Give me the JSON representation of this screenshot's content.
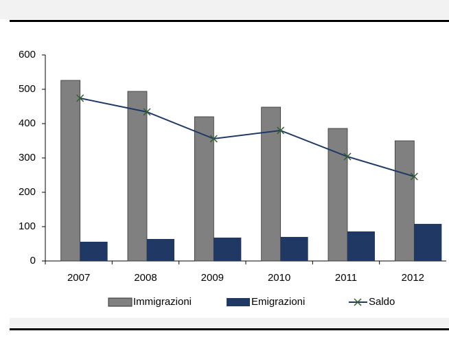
{
  "chart_data": {
    "type": "bar",
    "categories": [
      "2007",
      "2008",
      "2009",
      "2010",
      "2011",
      "2012"
    ],
    "series": [
      {
        "name": "Immigrazioni",
        "type": "bar",
        "color": "#808080",
        "values": [
          526,
          494,
          420,
          448,
          386,
          350
        ]
      },
      {
        "name": "Emigrazioni",
        "type": "bar",
        "color": "#1f3864",
        "values": [
          56,
          64,
          68,
          70,
          86,
          108
        ]
      },
      {
        "name": "Saldo",
        "type": "line",
        "color": "#1f3864",
        "marker_color": "#2e5e2e",
        "values": [
          474,
          434,
          356,
          380,
          304,
          246
        ]
      }
    ],
    "ylim": [
      0,
      600
    ],
    "yticks": [
      0,
      100,
      200,
      300,
      400,
      500,
      600
    ],
    "grid": false,
    "legend": "bottom"
  }
}
